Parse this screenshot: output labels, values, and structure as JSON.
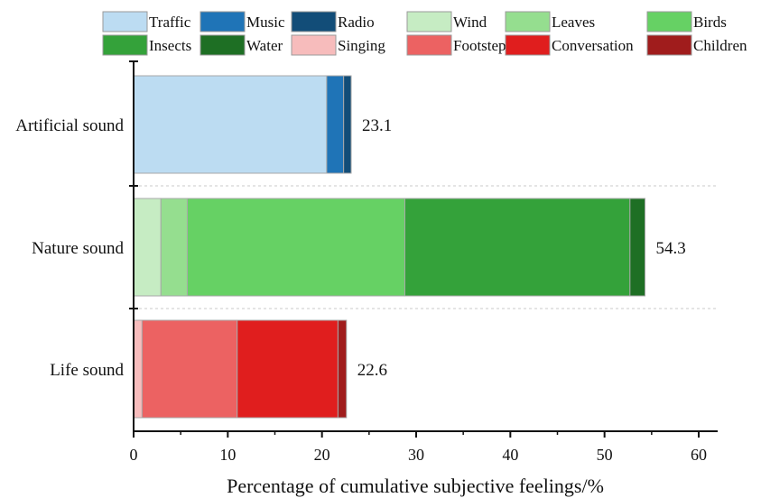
{
  "chart_data": {
    "type": "bar",
    "orientation": "horizontal",
    "stacked": true,
    "categories": [
      "Artificial sound",
      "Nature sound",
      "Life sound"
    ],
    "series": [
      {
        "name": "Traffic",
        "color": "#bcdcf2",
        "values": [
          20.5,
          0,
          0
        ]
      },
      {
        "name": "Music",
        "color": "#1f74b7",
        "values": [
          1.8,
          0,
          0
        ]
      },
      {
        "name": "Radio",
        "color": "#124d78",
        "values": [
          0.8,
          0,
          0
        ]
      },
      {
        "name": "Wind",
        "color": "#c6ecc3",
        "values": [
          0,
          2.9,
          0
        ]
      },
      {
        "name": "Leaves",
        "color": "#95de8f",
        "values": [
          0,
          2.8,
          0
        ]
      },
      {
        "name": "Birds",
        "color": "#66d164",
        "values": [
          0,
          23.1,
          0
        ]
      },
      {
        "name": "Insects",
        "color": "#34a23a",
        "values": [
          0,
          23.9,
          0
        ]
      },
      {
        "name": "Water",
        "color": "#1e6f24",
        "values": [
          0,
          1.6,
          0
        ]
      },
      {
        "name": "Singing",
        "color": "#f7bcbc",
        "values": [
          0,
          0,
          0.9
        ]
      },
      {
        "name": "Footsteps",
        "color": "#ec6262",
        "values": [
          0,
          0,
          10.1
        ]
      },
      {
        "name": "Conversation",
        "color": "#e01e1e",
        "values": [
          0,
          0,
          10.7
        ]
      },
      {
        "name": "Children",
        "color": "#a01c1c",
        "values": [
          0,
          0,
          0.9
        ]
      }
    ],
    "totals": [
      "23.1",
      "54.3",
      "22.6"
    ],
    "xlabel": "Percentage of cumulative subjective feelings/%",
    "ylabel": "",
    "xlim": [
      0,
      60
    ],
    "xticks": [
      "0",
      "10",
      "20",
      "30",
      "40",
      "50",
      "60"
    ],
    "legend_position": "top",
    "grid": "dashed separators between categories"
  }
}
